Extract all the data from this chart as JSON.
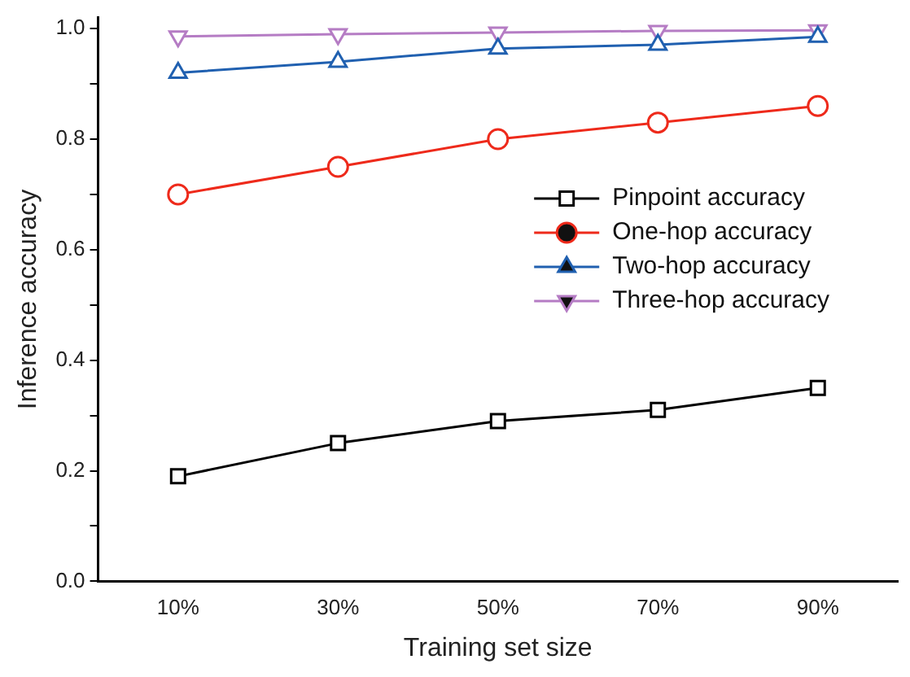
{
  "chart_data": {
    "type": "line",
    "xlabel": "Training set size",
    "ylabel": "Inference accuracy",
    "categories": [
      "10%",
      "30%",
      "50%",
      "70%",
      "90%"
    ],
    "ylim": [
      0,
      1.02
    ],
    "yticks": [
      {
        "value": 0,
        "label": "0.0"
      },
      {
        "value": 0.1,
        "label": null
      },
      {
        "value": 0.2,
        "label": "0.2"
      },
      {
        "value": 0.3,
        "label": null
      },
      {
        "value": 0.4,
        "label": "0.4"
      },
      {
        "value": 0.5,
        "label": null
      },
      {
        "value": 0.6,
        "label": "0.6"
      },
      {
        "value": 0.7,
        "label": null
      },
      {
        "value": 0.8,
        "label": "0.8"
      },
      {
        "value": 0.9,
        "label": null
      },
      {
        "value": 1.0,
        "label": "1.0"
      }
    ],
    "grid": false,
    "legend": "right",
    "line_style": "solid",
    "series": [
      {
        "name": "Pinpoint accuracy",
        "color": "#000000",
        "marker": "square",
        "values": [
          0.19,
          0.25,
          0.29,
          0.31,
          0.35
        ]
      },
      {
        "name": "One-hop accuracy",
        "color": "#ee2a1b",
        "marker": "circle",
        "values": [
          0.7,
          0.75,
          0.8,
          0.83,
          0.86
        ]
      },
      {
        "name": "Two-hop accuracy",
        "color": "#2060b0",
        "marker": "triangle",
        "values": [
          0.92,
          0.94,
          0.964,
          0.971,
          0.985
        ]
      },
      {
        "name": "Three-hop accuracy",
        "color": "#b57cc4",
        "marker": "triangle_down",
        "values": [
          0.986,
          0.99,
          0.993,
          0.996,
          0.997
        ]
      }
    ]
  }
}
